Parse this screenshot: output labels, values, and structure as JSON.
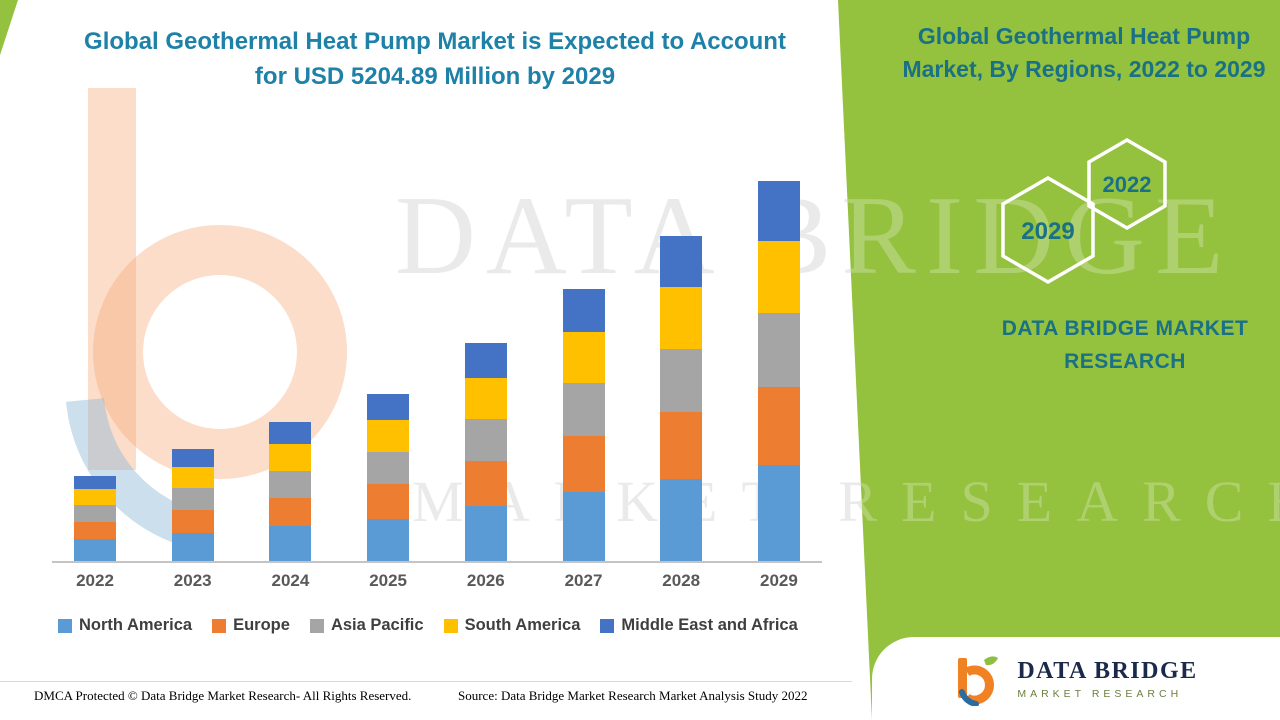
{
  "header": {
    "title_line1": "Global Geothermal Heat Pump Market is Expected to Account",
    "title_line2": "for USD 5204.89 Million by 2029"
  },
  "side_panel": {
    "heading_line1": "Global Geothermal Heat Pump",
    "heading_line2": "Market, By Regions, 2022 to 2029",
    "hexagons": [
      {
        "label": "2029"
      },
      {
        "label": "2022"
      }
    ],
    "brand_line1": "DATA BRIDGE MARKET",
    "brand_line2": "RESEARCH"
  },
  "watermark": {
    "line1": "DATA BRIDGE",
    "line2": "MARKET RESEARCH"
  },
  "logo_box": {
    "name": "DATA BRIDGE",
    "subtitle": "MARKET RESEARCH"
  },
  "footer": {
    "dmca": "DMCA Protected © Data Bridge Market Research- All Rights Reserved.",
    "source": "Source: Data Bridge Market Research Market Analysis Study 2022"
  },
  "colors": {
    "panel_green": "#94c13e",
    "title_teal": "#1e81a8",
    "panel_teal": "#1a7186"
  },
  "chart_data": {
    "type": "bar",
    "stacked": true,
    "title": "Global Geothermal Heat Pump Market, By Regions, 2022 to 2029",
    "unit": "USD Million",
    "categories": [
      "2022",
      "2023",
      "2024",
      "2025",
      "2026",
      "2027",
      "2028",
      "2029"
    ],
    "series": [
      {
        "name": "North America",
        "color": "#5b9bd5",
        "values": [
          300,
          390,
          480,
          580,
          760,
          950,
          1130,
          1320
        ]
      },
      {
        "name": "Europe",
        "color": "#ed7d31",
        "values": [
          240,
          310,
          390,
          470,
          610,
          760,
          910,
          1060
        ]
      },
      {
        "name": "Asia Pacific",
        "color": "#a5a5a5",
        "values": [
          230,
          300,
          370,
          450,
          580,
          730,
          870,
          1020
        ]
      },
      {
        "name": "South America",
        "color": "#ffc000",
        "values": [
          220,
          290,
          360,
          430,
          560,
          700,
          840,
          980
        ]
      },
      {
        "name": "Middle East and Africa",
        "color": "#4472c4",
        "values": [
          170,
          240,
          300,
          360,
          480,
          590,
          710,
          824.89
        ]
      }
    ],
    "totals_by_year": [
      1160,
      1530,
      1900,
      2290,
      2990,
      3730,
      4460,
      5204.89
    ],
    "highlight_total_2029": 5204.89,
    "ylim": [
      0,
      5204.89
    ],
    "grid": false,
    "legend_position": "bottom"
  }
}
